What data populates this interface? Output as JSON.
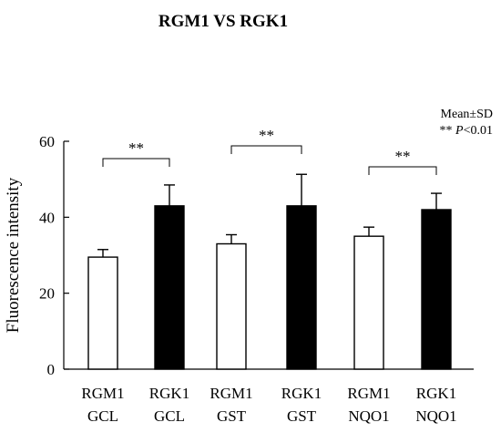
{
  "chart_data": {
    "type": "bar",
    "title": "RGM1 VS RGK1",
    "ylabel": "Fluorescence intensity",
    "xlabel": "",
    "ylim": [
      0,
      60
    ],
    "yticks": [
      0,
      20,
      40,
      60
    ],
    "legend_note": {
      "line1": "Mean±SD",
      "line2_prefix": "** ",
      "line2_italic": "P",
      "line2_suffix": "<0.01"
    },
    "bars": [
      {
        "label_line1": "RGM1",
        "label_line2": "GCL",
        "value": 29.5,
        "sd": 2.0,
        "fill": "#ffffff"
      },
      {
        "label_line1": "RGK1",
        "label_line2": "GCL",
        "value": 43.0,
        "sd": 5.5,
        "fill": "#000000"
      },
      {
        "label_line1": "RGM1",
        "label_line2": "GST",
        "value": 33.0,
        "sd": 2.4,
        "fill": "#ffffff"
      },
      {
        "label_line1": "RGK1",
        "label_line2": "GST",
        "value": 43.0,
        "sd": 8.3,
        "fill": "#000000"
      },
      {
        "label_line1": "RGM1",
        "label_line2": "NQO1",
        "value": 35.0,
        "sd": 2.4,
        "fill": "#ffffff"
      },
      {
        "label_line1": "RGK1",
        "label_line2": "NQO1",
        "value": 42.0,
        "sd": 4.3,
        "fill": "#000000"
      }
    ],
    "significance": [
      {
        "from": 0,
        "to": 1,
        "label": "**"
      },
      {
        "from": 2,
        "to": 3,
        "label": "**"
      },
      {
        "from": 4,
        "to": 5,
        "label": "**"
      }
    ]
  }
}
